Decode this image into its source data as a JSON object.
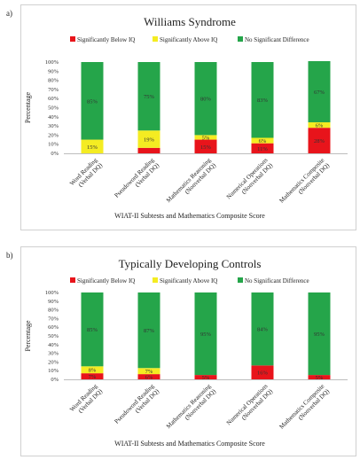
{
  "panels": [
    {
      "label": "a)",
      "chart_data": {
        "type": "bar",
        "stacked": true,
        "title": "Williams Syndrome",
        "xlabel": "WIAT-II Subtests and Mathematics Composite Score",
        "ylabel": "Percentage",
        "ylim": [
          0,
          100
        ],
        "yticks": [
          "0%",
          "10%",
          "20%",
          "30%",
          "40%",
          "50%",
          "60%",
          "70%",
          "80%",
          "90%",
          "100%"
        ],
        "legend_position": "top",
        "categories": [
          [
            "Word Reading",
            "(Verbal DQ)"
          ],
          [
            "Pseudoword Reading",
            "(Verbal DQ)"
          ],
          [
            "Mathematics Reasoning",
            "(Nonverbal DQ)"
          ],
          [
            "Numerical Operations",
            "(Nonverbal DQ)"
          ],
          [
            "Mathematics Composite",
            "(Nonverbal DQ)"
          ]
        ],
        "series": [
          {
            "name": "Significantly Below IQ",
            "color": "#e8141b",
            "values": [
              0,
              6,
              15,
              11,
              28
            ],
            "labels": [
              "",
              "",
              "15%",
              "11%",
              "28%"
            ]
          },
          {
            "name": "Significantly Above IQ",
            "color": "#f4ec22",
            "values": [
              15,
              19,
              5,
              6,
              6
            ],
            "labels": [
              "15%",
              "19%",
              "5%",
              "6%",
              "6%"
            ]
          },
          {
            "name": "No Significant Difference",
            "color": "#25a54a",
            "values": [
              85,
              75,
              80,
              83,
              67
            ],
            "labels": [
              "85%",
              "75%",
              "80%",
              "83%",
              "67%"
            ]
          }
        ]
      }
    },
    {
      "label": "b)",
      "chart_data": {
        "type": "bar",
        "stacked": true,
        "title": "Typically Developing Controls",
        "xlabel": "WIAT-II Subtests and Mathematics Composite Score",
        "ylabel": "Percentage",
        "ylim": [
          0,
          100
        ],
        "yticks": [
          "0%",
          "10%",
          "20%",
          "30%",
          "40%",
          "50%",
          "60%",
          "70%",
          "80%",
          "90%",
          "100%"
        ],
        "legend_position": "top",
        "categories": [
          [
            "Word Reading",
            "(Verbal DQ)"
          ],
          [
            "Pseudoword Reading",
            "(Verbal DQ)"
          ],
          [
            "Mathematics Reasoning",
            "(Nonverbal DQ)"
          ],
          [
            "Numerical Operations",
            "(Nonverbal DQ)"
          ],
          [
            "Mathematics Composite",
            "(Nonverbal DQ)"
          ]
        ],
        "series": [
          {
            "name": "Significantly Below IQ",
            "color": "#e8141b",
            "values": [
              7,
              6,
              5,
              16,
              5
            ],
            "labels": [
              "7%",
              "6%",
              "5%",
              "16%",
              "5%"
            ]
          },
          {
            "name": "Significantly Above IQ",
            "color": "#f4ec22",
            "values": [
              8,
              7,
              0,
              0,
              0
            ],
            "labels": [
              "8%",
              "7%",
              "",
              "",
              ""
            ]
          },
          {
            "name": "No Significant Difference",
            "color": "#25a54a",
            "values": [
              85,
              87,
              95,
              84,
              95
            ],
            "labels": [
              "85%",
              "87%",
              "95%",
              "84%",
              "95%"
            ]
          }
        ]
      }
    }
  ]
}
